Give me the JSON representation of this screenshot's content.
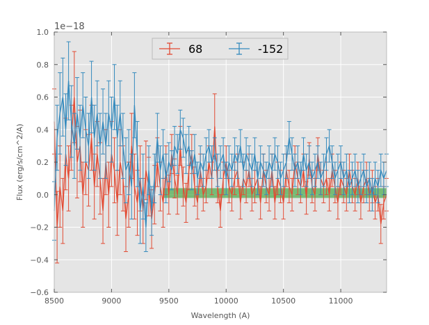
{
  "chart_data": {
    "type": "line",
    "subtype": "errorbar",
    "title": "",
    "xlabel": "Wavelength (A)",
    "ylabel": "Flux (erg/s/cm^2/A)",
    "y_offset_label": "1e−18",
    "xlim": [
      8500,
      11400
    ],
    "ylim": [
      -0.6,
      1.0
    ],
    "xticks": [
      8500,
      9000,
      9500,
      10000,
      10500,
      11000
    ],
    "xtick_labels": [
      "8500",
      "9000",
      "9500",
      "10000",
      "10500",
      "11000"
    ],
    "yticks": [
      -0.6,
      -0.4,
      -0.2,
      0.0,
      0.2,
      0.4,
      0.6,
      0.8,
      1.0
    ],
    "ytick_labels": [
      "−0.6",
      "−0.4",
      "−0.2",
      "0.0",
      "0.2",
      "0.4",
      "0.6",
      "0.8",
      "1.0"
    ],
    "grid": true,
    "legend_position": "top-center",
    "background": "#e5e5e5",
    "band": {
      "x_start": 9450,
      "x_end": 11400,
      "y_low": -0.02,
      "y_high": 0.04,
      "color": "#3aa53a"
    },
    "series": [
      {
        "name": "68",
        "color": "#e24a33",
        "x": [
          8500,
          8525,
          8550,
          8575,
          8600,
          8625,
          8650,
          8675,
          8700,
          8725,
          8750,
          8775,
          8800,
          8825,
          8850,
          8875,
          8900,
          8925,
          8950,
          8975,
          9000,
          9025,
          9050,
          9075,
          9100,
          9125,
          9150,
          9175,
          9200,
          9225,
          9250,
          9275,
          9300,
          9325,
          9350,
          9375,
          9400,
          9425,
          9450,
          9475,
          9500,
          9525,
          9550,
          9575,
          9600,
          9625,
          9650,
          9675,
          9700,
          9725,
          9750,
          9775,
          9800,
          9825,
          9850,
          9875,
          9900,
          9925,
          9950,
          9975,
          10000,
          10025,
          10050,
          10075,
          10100,
          10125,
          10150,
          10175,
          10200,
          10225,
          10250,
          10275,
          10300,
          10325,
          10350,
          10375,
          10400,
          10425,
          10450,
          10475,
          10500,
          10525,
          10550,
          10575,
          10600,
          10625,
          10650,
          10675,
          10700,
          10725,
          10750,
          10775,
          10800,
          10825,
          10850,
          10875,
          10900,
          10925,
          10950,
          10975,
          11000,
          11025,
          11050,
          11075,
          11100,
          11125,
          11150,
          11175,
          11200,
          11225,
          11250,
          11275,
          11300,
          11325,
          11350,
          11375,
          11400
        ],
        "y": [
          0.45,
          -0.2,
          0.05,
          -0.1,
          0.25,
          0.1,
          0.35,
          0.6,
          0.2,
          0.3,
          0.0,
          0.2,
          0.15,
          0.35,
          0.05,
          0.25,
          0.1,
          -0.1,
          0.2,
          0.0,
          0.25,
          0.15,
          -0.05,
          0.2,
          0.1,
          -0.15,
          0.0,
          0.3,
          0.05,
          -0.05,
          0.1,
          -0.1,
          0.15,
          0.05,
          -0.15,
          0.0,
          0.2,
          0.05,
          -0.05,
          0.15,
          0.0,
          0.25,
          0.1,
          0.0,
          0.3,
          0.05,
          -0.05,
          0.15,
          0.25,
          0.05,
          -0.05,
          0.15,
          0.0,
          0.05,
          0.2,
          0.1,
          0.42,
          0.05,
          -0.1,
          0.1,
          0.2,
          0.05,
          0.0,
          0.1,
          0.15,
          -0.05,
          0.1,
          0.05,
          0.15,
          0.0,
          0.05,
          0.1,
          -0.05,
          0.15,
          0.05,
          0.0,
          0.15,
          -0.05,
          0.1,
          0.05,
          -0.05,
          0.15,
          0.05,
          0.0,
          0.2,
          0.1,
          0.05,
          0.15,
          -0.02,
          0.22,
          0.05,
          0.0,
          0.25,
          0.1,
          0.05,
          0.1,
          0.0,
          0.15,
          0.05,
          -0.05,
          0.1,
          0.05,
          0.0,
          0.15,
          0.05,
          0.0,
          0.1,
          -0.05,
          0.05,
          0.1,
          0.0,
          0.05,
          -0.05,
          0.0,
          -0.18,
          -0.05,
          0.0
        ],
        "err": [
          0.2,
          0.22,
          0.25,
          0.2,
          0.22,
          0.2,
          0.2,
          0.28,
          0.22,
          0.22,
          0.2,
          0.2,
          0.22,
          0.2,
          0.2,
          0.2,
          0.22,
          0.2,
          0.2,
          0.2,
          0.2,
          0.2,
          0.2,
          0.2,
          0.2,
          0.2,
          0.2,
          0.2,
          0.2,
          0.2,
          0.2,
          0.2,
          0.18,
          0.18,
          0.18,
          0.18,
          0.15,
          0.15,
          0.15,
          0.15,
          0.12,
          0.12,
          0.12,
          0.12,
          0.12,
          0.12,
          0.12,
          0.12,
          0.12,
          0.12,
          0.1,
          0.1,
          0.1,
          0.1,
          0.1,
          0.1,
          0.2,
          0.1,
          0.1,
          0.1,
          0.1,
          0.1,
          0.1,
          0.1,
          0.1,
          0.1,
          0.1,
          0.1,
          0.1,
          0.1,
          0.1,
          0.1,
          0.1,
          0.1,
          0.1,
          0.1,
          0.1,
          0.1,
          0.1,
          0.1,
          0.1,
          0.1,
          0.1,
          0.1,
          0.1,
          0.1,
          0.1,
          0.1,
          0.1,
          0.1,
          0.1,
          0.1,
          0.1,
          0.1,
          0.1,
          0.1,
          0.1,
          0.1,
          0.1,
          0.1,
          0.1,
          0.1,
          0.1,
          0.1,
          0.1,
          0.1,
          0.1,
          0.1,
          0.1,
          0.1,
          0.1,
          0.1,
          0.1,
          0.1,
          0.12,
          0.1,
          0.1
        ]
      },
      {
        "name": "-152",
        "color": "#348abd",
        "x": [
          8500,
          8525,
          8550,
          8575,
          8600,
          8625,
          8650,
          8675,
          8700,
          8725,
          8750,
          8775,
          8800,
          8825,
          8850,
          8875,
          8900,
          8925,
          8950,
          8975,
          9000,
          9025,
          9050,
          9075,
          9100,
          9125,
          9150,
          9175,
          9200,
          9225,
          9250,
          9275,
          9300,
          9325,
          9350,
          9375,
          9400,
          9425,
          9450,
          9475,
          9500,
          9525,
          9550,
          9575,
          9600,
          9625,
          9650,
          9675,
          9700,
          9725,
          9750,
          9775,
          9800,
          9825,
          9850,
          9875,
          9900,
          9925,
          9950,
          9975,
          10000,
          10025,
          10050,
          10075,
          10100,
          10125,
          10150,
          10175,
          10200,
          10225,
          10250,
          10275,
          10300,
          10325,
          10350,
          10375,
          10400,
          10425,
          10450,
          10475,
          10500,
          10525,
          10550,
          10575,
          10600,
          10625,
          10650,
          10675,
          10700,
          10725,
          10750,
          10775,
          10800,
          10825,
          10850,
          10875,
          10900,
          10925,
          10950,
          10975,
          11000,
          11025,
          11050,
          11075,
          11100,
          11125,
          11150,
          11175,
          11200,
          11225,
          11250,
          11275,
          11300,
          11325,
          11350,
          11375,
          11400
        ],
        "y": [
          -0.1,
          0.35,
          0.5,
          0.6,
          0.4,
          0.7,
          0.45,
          0.3,
          0.5,
          0.35,
          0.55,
          0.4,
          0.3,
          0.6,
          0.35,
          0.5,
          0.3,
          0.45,
          0.3,
          0.5,
          0.4,
          0.6,
          0.35,
          0.5,
          0.3,
          0.15,
          0.2,
          0.05,
          0.55,
          0.25,
          -0.1,
          0.05,
          -0.2,
          0.15,
          -0.1,
          0.1,
          0.35,
          0.15,
          0.25,
          0.1,
          0.2,
          0.15,
          0.3,
          0.25,
          0.4,
          0.35,
          0.25,
          0.3,
          0.15,
          0.25,
          0.1,
          0.2,
          0.15,
          0.25,
          0.3,
          0.2,
          0.25,
          0.15,
          0.2,
          0.25,
          0.1,
          0.2,
          0.15,
          0.25,
          0.2,
          0.3,
          0.15,
          0.25,
          0.2,
          0.15,
          0.25,
          0.1,
          0.2,
          0.15,
          0.1,
          0.2,
          0.15,
          0.25,
          0.2,
          0.1,
          0.15,
          0.2,
          0.35,
          0.25,
          0.15,
          0.2,
          0.1,
          0.25,
          0.15,
          0.2,
          0.1,
          0.15,
          0.2,
          0.1,
          0.15,
          0.25,
          0.3,
          0.2,
          0.1,
          0.15,
          0.2,
          0.1,
          0.15,
          0.05,
          0.1,
          0.15,
          0.05,
          0.1,
          0.15,
          0.05,
          0.1,
          0.0,
          0.1,
          0.05,
          0.15,
          0.1,
          0.15
        ],
        "err": [
          0.18,
          0.2,
          0.25,
          0.24,
          0.22,
          0.24,
          0.22,
          0.2,
          0.22,
          0.2,
          0.2,
          0.2,
          0.2,
          0.22,
          0.2,
          0.2,
          0.2,
          0.2,
          0.2,
          0.2,
          0.2,
          0.2,
          0.2,
          0.2,
          0.2,
          0.2,
          0.2,
          0.2,
          0.2,
          0.2,
          0.2,
          0.2,
          0.15,
          0.15,
          0.15,
          0.15,
          0.15,
          0.15,
          0.15,
          0.15,
          0.12,
          0.12,
          0.12,
          0.12,
          0.12,
          0.12,
          0.12,
          0.12,
          0.12,
          0.12,
          0.1,
          0.1,
          0.1,
          0.1,
          0.1,
          0.1,
          0.1,
          0.1,
          0.1,
          0.1,
          0.1,
          0.1,
          0.1,
          0.1,
          0.1,
          0.1,
          0.1,
          0.1,
          0.1,
          0.1,
          0.1,
          0.1,
          0.1,
          0.1,
          0.1,
          0.1,
          0.1,
          0.1,
          0.1,
          0.1,
          0.1,
          0.1,
          0.1,
          0.1,
          0.1,
          0.1,
          0.1,
          0.1,
          0.1,
          0.1,
          0.1,
          0.1,
          0.1,
          0.1,
          0.1,
          0.1,
          0.1,
          0.1,
          0.1,
          0.1,
          0.1,
          0.1,
          0.1,
          0.1,
          0.1,
          0.1,
          0.1,
          0.1,
          0.1,
          0.1,
          0.1,
          0.1,
          0.1,
          0.1,
          0.1,
          0.1,
          0.1
        ]
      }
    ]
  }
}
